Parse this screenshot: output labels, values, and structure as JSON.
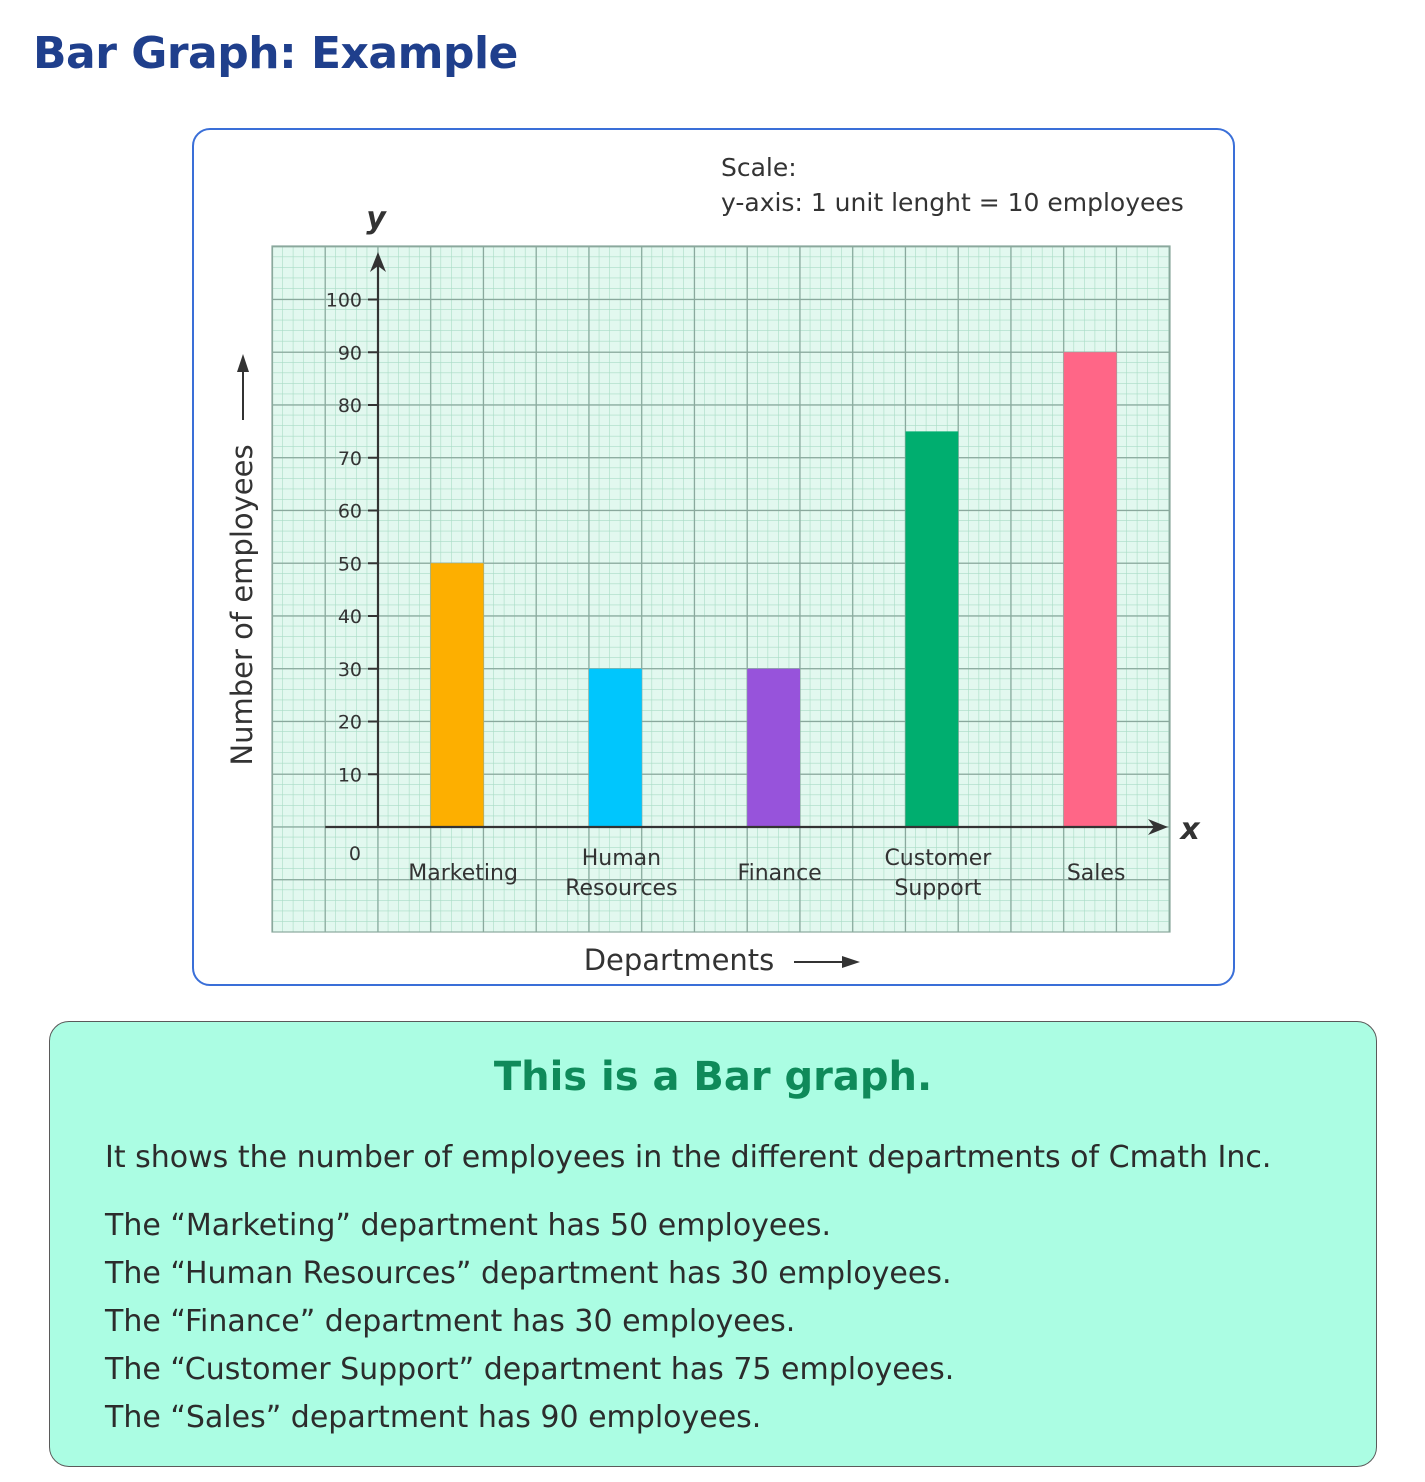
{
  "page": {
    "title": "Bar Graph: Example"
  },
  "chart_data": {
    "type": "bar",
    "title": "",
    "scale_note": [
      "Scale:",
      "y-axis: 1 unit lenght = 10 employees"
    ],
    "categories": [
      [
        "Marketing"
      ],
      [
        "Human",
        "Resources"
      ],
      [
        "Finance"
      ],
      [
        "Customer",
        "Support"
      ],
      [
        "Sales"
      ]
    ],
    "values": [
      50,
      30,
      30,
      75,
      90
    ],
    "colors": [
      "#fdaf00",
      "#00c6fd",
      "#9753db",
      "#00ae6f",
      "#ff6687"
    ],
    "xlabel": "Departments",
    "ylabel": "Number of employees",
    "x_axis_letter": "x",
    "y_axis_letter": "y",
    "origin_label": "0",
    "yticks": [
      10,
      20,
      30,
      40,
      50,
      60,
      70,
      80,
      90,
      100
    ],
    "ylim": [
      0,
      100
    ],
    "grid": true
  },
  "info": {
    "heading": "This is a Bar graph.",
    "intro": "It shows the number of employees in the different departments of Cmath Inc.",
    "lines": [
      "The “Marketing” department has 50 employees.",
      "The “Human Resources” department has 30 employees.",
      "The “Finance” department has 30 employees.",
      "The “Customer Support” department has 75 employees.",
      "The “Sales” department has 90 employees."
    ]
  }
}
